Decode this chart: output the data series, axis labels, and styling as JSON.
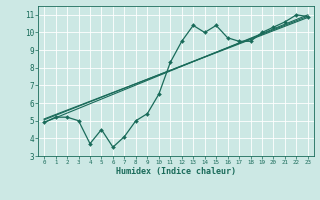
{
  "xlabel": "Humidex (Indice chaleur)",
  "bg_color": "#cce8e4",
  "grid_color": "#b0d8d2",
  "line_color": "#1a6b5a",
  "xlim": [
    -0.5,
    23.5
  ],
  "ylim": [
    3.0,
    11.5
  ],
  "xticks": [
    0,
    1,
    2,
    3,
    4,
    5,
    6,
    7,
    8,
    9,
    10,
    11,
    12,
    13,
    14,
    15,
    16,
    17,
    18,
    19,
    20,
    21,
    22,
    23
  ],
  "yticks": [
    3,
    4,
    5,
    6,
    7,
    8,
    9,
    10,
    11
  ],
  "humidex_data": [
    0,
    1,
    2,
    3,
    4,
    5,
    6,
    7,
    8,
    9,
    10,
    11,
    12,
    13,
    14,
    15,
    16,
    17,
    18,
    19,
    20,
    21,
    22,
    23
  ],
  "series1": [
    4.9,
    5.2,
    5.2,
    5.0,
    3.7,
    4.5,
    3.5,
    4.1,
    5.0,
    5.4,
    6.5,
    8.3,
    9.5,
    10.4,
    10.0,
    10.4,
    9.7,
    9.5,
    9.5,
    10.0,
    10.3,
    10.6,
    11.0,
    10.9
  ],
  "trend1_x": [
    0,
    23
  ],
  "trend1_y": [
    4.9,
    11.0
  ],
  "trend2_x": [
    0,
    23
  ],
  "trend2_y": [
    5.1,
    10.85
  ],
  "trend3_x": [
    0,
    23
  ],
  "trend3_y": [
    5.05,
    10.92
  ]
}
